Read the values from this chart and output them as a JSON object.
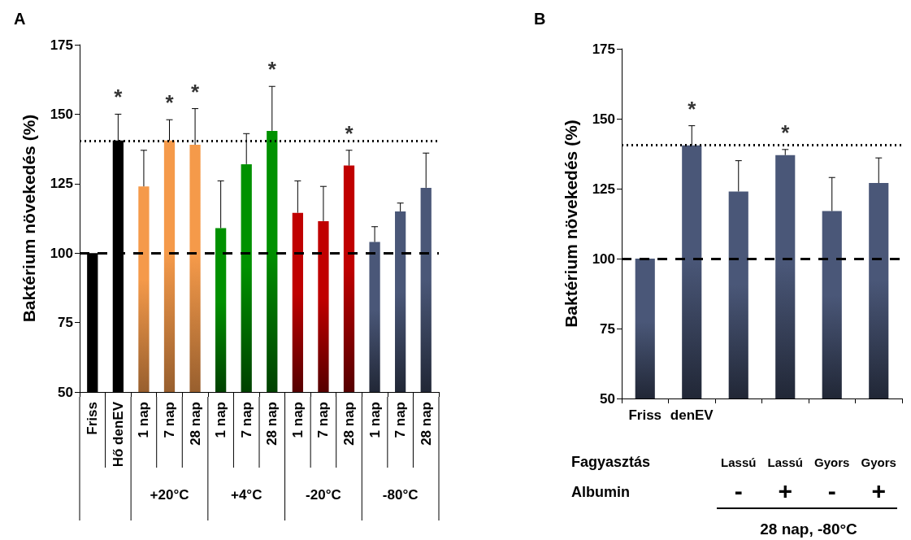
{
  "chart_data": [
    {
      "type": "bar",
      "title": "A",
      "ylabel": "Baktérium növekedés (%)",
      "categories": [
        "Friss",
        "Hő denEV",
        "1 nap",
        "7 nap",
        "28 nap",
        "1 nap",
        "7 nap",
        "28 nap",
        "1 nap",
        "7 nap",
        "28 nap",
        "1 nap",
        "7 nap",
        "28 nap"
      ],
      "values": [
        100,
        140.5,
        124,
        140.5,
        139,
        109,
        132,
        144,
        114.5,
        111.5,
        131.5,
        104,
        115,
        123.5
      ],
      "colors": [
        "#000000",
        "#000000",
        "#f59a4a",
        "#f59a4a",
        "#f59a4a",
        "#009100",
        "#009100",
        "#009100",
        "#c00000",
        "#c00000",
        "#c00000",
        "#4a5778",
        "#4a5778",
        "#4a5778"
      ],
      "errors": [
        null,
        [
          140.5,
          150
        ],
        [
          124,
          137
        ],
        [
          140.5,
          148
        ],
        [
          139,
          152
        ],
        [
          109,
          126
        ],
        [
          132,
          143
        ],
        [
          144,
          160
        ],
        [
          114.5,
          126
        ],
        [
          111.5,
          124
        ],
        [
          131.5,
          137
        ],
        [
          104,
          109.5
        ],
        [
          115,
          118
        ],
        [
          123.5,
          136
        ]
      ],
      "value_labels": [
        null,
        "*",
        null,
        "*",
        "*",
        null,
        null,
        "*",
        null,
        null,
        "*",
        null,
        null,
        null
      ],
      "ylim": [
        50,
        175
      ],
      "yticks": [
        50,
        75,
        100,
        125,
        150,
        175
      ],
      "ref_lines": [
        {
          "axis": "y",
          "value": 100,
          "line_style": "dashed",
          "color": "#000000"
        },
        {
          "axis": "y",
          "value": 140.5,
          "line_style": "dotted",
          "color": "#000000"
        }
      ],
      "annotations": [
        "+20°C",
        "+4°C",
        "-20°C",
        "-80°C"
      ]
    },
    {
      "type": "bar",
      "title": "B",
      "ylabel": "Baktérium növekedés (%)",
      "categories": [
        "Friss",
        "denEV",
        null,
        null,
        null,
        null
      ],
      "values": [
        100,
        140.5,
        124,
        137,
        117,
        127
      ],
      "colors": [
        "#4a5778",
        "#4a5778",
        "#4a5778",
        "#4a5778",
        "#4a5778",
        "#4a5778"
      ],
      "errors": [
        null,
        [
          140.5,
          147.5
        ],
        [
          124,
          135
        ],
        [
          137,
          139
        ],
        [
          117,
          129
        ],
        [
          127,
          136
        ]
      ],
      "value_labels": [
        null,
        "*",
        null,
        "*",
        null,
        null
      ],
      "ylim": [
        50,
        175
      ],
      "yticks": [
        50,
        75,
        100,
        125,
        150,
        175
      ],
      "ref_lines": [
        {
          "axis": "y",
          "value": 100,
          "line_style": "dashed",
          "color": "#000000"
        },
        {
          "axis": "y",
          "value": 140.5,
          "line_style": "dotted",
          "color": "#000000"
        }
      ],
      "annotations": [
        "Fagyasztás",
        "Albumin",
        "Lassú",
        "Lassú",
        "Gyors",
        "Gyors",
        "-",
        "+",
        "-",
        "+",
        "28 nap, -80°C"
      ]
    }
  ]
}
